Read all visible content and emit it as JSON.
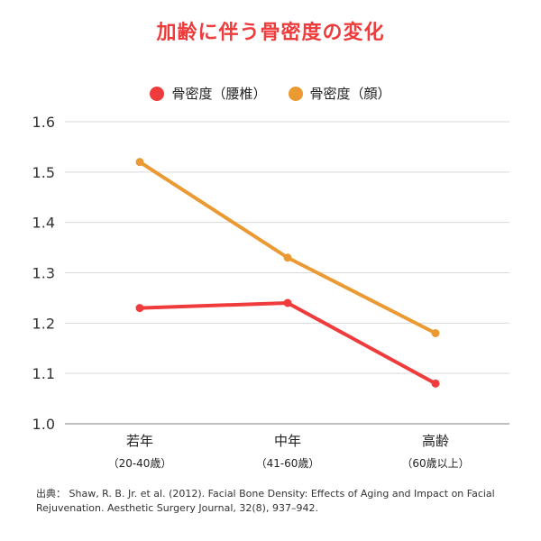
{
  "chart_data": {
    "type": "line",
    "title": "加齢に伴う骨密度の変化",
    "categories": [
      "若年",
      "中年",
      "高齢"
    ],
    "category_sublabels": [
      "（20-40歳）",
      "（41-60歳）",
      "（60歳以上）"
    ],
    "series": [
      {
        "name": "骨密度（腰椎）",
        "color": "#ef3b3b",
        "values": [
          1.23,
          1.24,
          1.08
        ]
      },
      {
        "name": "骨密度（顔）",
        "color": "#eb9a33",
        "values": [
          1.52,
          1.33,
          1.18
        ]
      }
    ],
    "ylim": [
      1.0,
      1.6
    ],
    "yticks": [
      "1.0",
      "1.1",
      "1.2",
      "1.3",
      "1.4",
      "1.5",
      "1.6"
    ],
    "grid": true,
    "legend_position": "top-center",
    "source": "出典： Shaw, R. B. Jr. et al. (2012). Facial Bone Density: Effects of Aging and Impact on Facial Rejuvenation. Aesthetic Surgery Journal, 32(8), 937–942."
  }
}
